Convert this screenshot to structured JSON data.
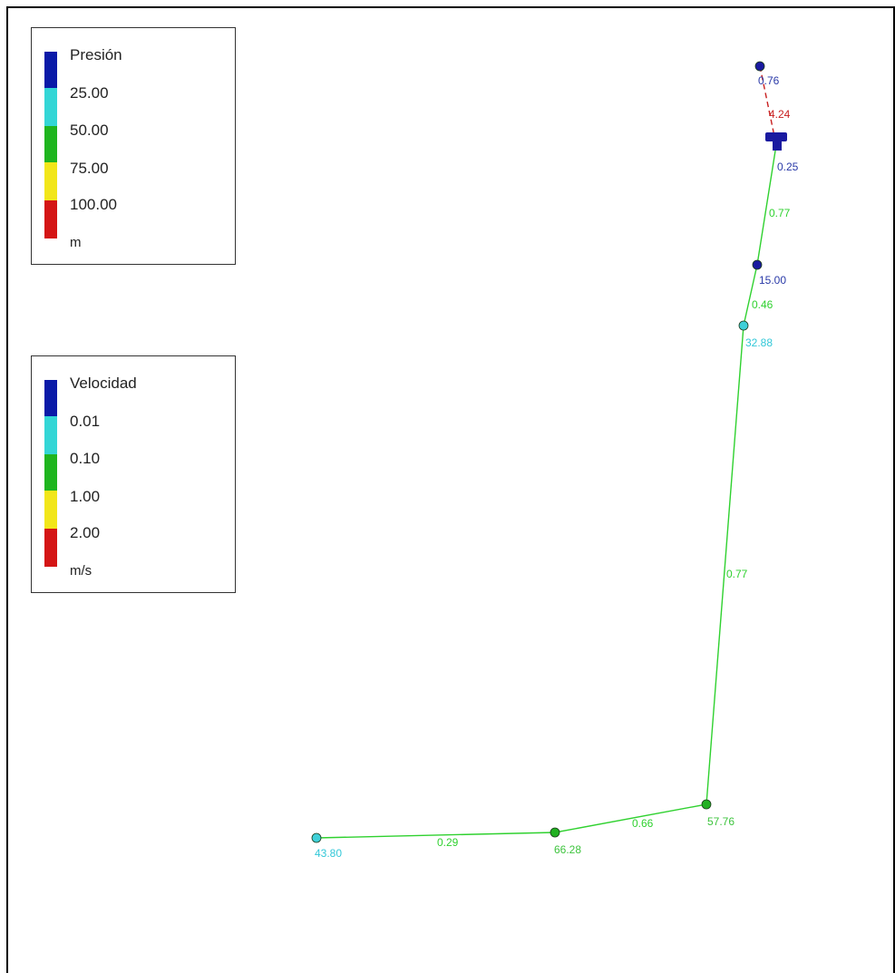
{
  "legend_pressure": {
    "title": "Presión",
    "ticks": [
      "25.00",
      "50.00",
      "75.00",
      "100.00"
    ],
    "unit": "m",
    "colors": [
      "#0a1aa8",
      "#33d6d6",
      "#1fb51f",
      "#f2e61a",
      "#d41515"
    ]
  },
  "legend_velocity": {
    "title": "Velocidad",
    "ticks": [
      "0.01",
      "0.10",
      "1.00",
      "2.00"
    ],
    "unit": "m/s",
    "colors": [
      "#0a1aa8",
      "#33d6d6",
      "#1fb51f",
      "#f2e61a",
      "#d41515"
    ]
  },
  "network": {
    "pipe_color": "#2fd12f",
    "pump_link_color": "#c81e1e",
    "nodes": [
      {
        "id": "n_top",
        "label": "0.76",
        "color": "#1a1aa0",
        "label_color": "#2a3aa8"
      },
      {
        "id": "n_pump",
        "label": "0.25",
        "color": "#1a1aa0",
        "label_color": "#2a3aa8",
        "kind": "pump"
      },
      {
        "id": "n_15",
        "label": "15.00",
        "color": "#1a1aa0",
        "label_color": "#2a3aa8"
      },
      {
        "id": "n_32",
        "label": "32.88",
        "color": "#3fd0d8",
        "label_color": "#33c8d8"
      },
      {
        "id": "n_57",
        "label": "57.76",
        "color": "#22b022",
        "label_color": "#3ec43e"
      },
      {
        "id": "n_66",
        "label": "66.28",
        "color": "#22b022",
        "label_color": "#3ec43e"
      },
      {
        "id": "n_43",
        "label": "43.80",
        "color": "#3fd0d8",
        "label_color": "#33c8d8"
      }
    ],
    "links": [
      {
        "from": "n_top",
        "to": "n_pump",
        "label": "4.24",
        "color": "#c81e1e",
        "dashed": true
      },
      {
        "from": "n_pump",
        "to": "n_15",
        "label": "0.77",
        "color": "#2fd12f"
      },
      {
        "from": "n_15",
        "to": "n_32",
        "label": "0.46",
        "color": "#2fd12f"
      },
      {
        "from": "n_32",
        "to": "n_57",
        "label": "0.77",
        "color": "#2fd12f"
      },
      {
        "from": "n_57",
        "to": "n_66",
        "label": "0.66",
        "color": "#2fd12f"
      },
      {
        "from": "n_66",
        "to": "n_43",
        "label": "0.29",
        "color": "#2fd12f"
      }
    ]
  }
}
